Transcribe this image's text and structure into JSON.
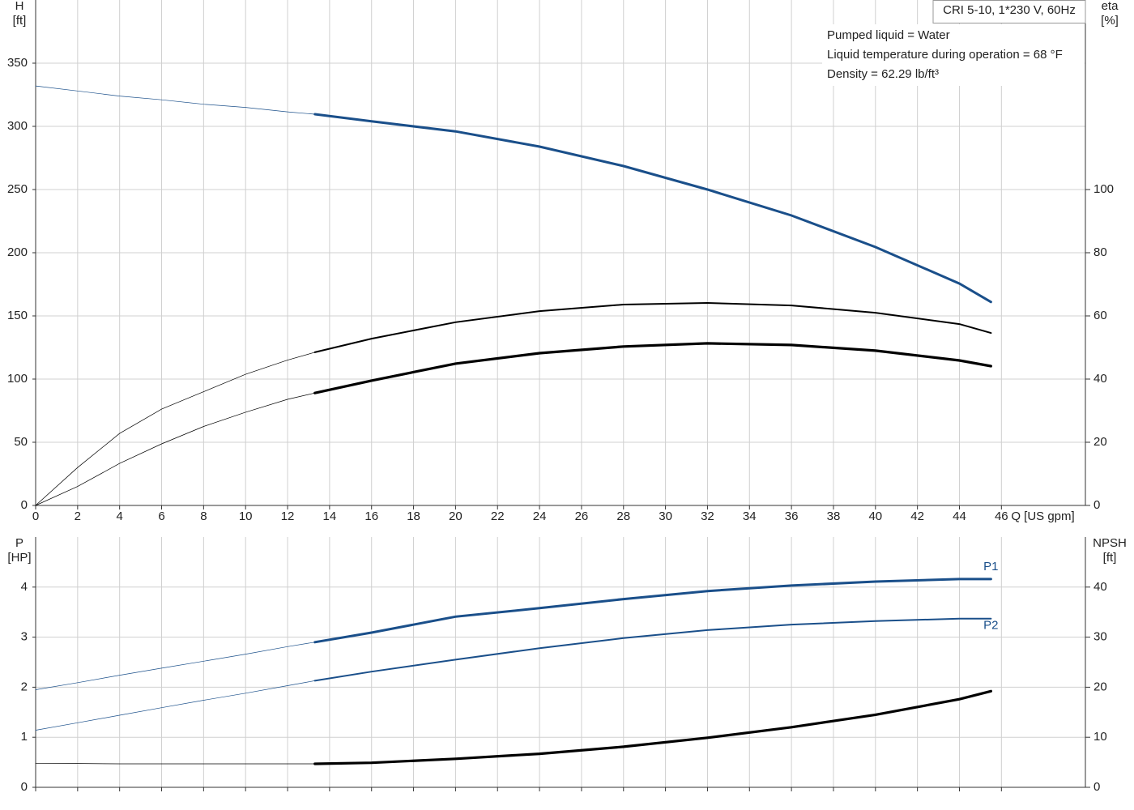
{
  "chart_data": [
    {
      "type": "line",
      "title": "CRI 5-10, 1*230 V, 60Hz",
      "annotations": [
        "Pumped liquid = Water",
        "Liquid temperature during operation = 68 °F",
        "Density = 62.29 lb/ft³"
      ],
      "ylabel": "H",
      "yunit": "[ft]",
      "y2label": "eta",
      "y2unit": "[%]",
      "xlabel": "Q [US gpm]",
      "xlim": [
        0,
        50
      ],
      "xticks": [
        0,
        2,
        4,
        6,
        8,
        10,
        12,
        14,
        16,
        18,
        20,
        22,
        24,
        26,
        28,
        30,
        32,
        34,
        36,
        38,
        40,
        42,
        44,
        46
      ],
      "ylim": [
        0,
        400
      ],
      "yticks": [
        0,
        50,
        100,
        150,
        200,
        250,
        300,
        350
      ],
      "y2lim": [
        0,
        160
      ],
      "y2ticks": [
        0,
        20,
        40,
        60,
        80,
        100
      ],
      "grid": true,
      "operating_range": [
        13.3,
        45.5
      ],
      "x": [
        0,
        2,
        4,
        6,
        8,
        10,
        12,
        13.3,
        16,
        20,
        24,
        28,
        32,
        36,
        40,
        44,
        45.5
      ],
      "series": [
        {
          "color": "#1a4f8a",
          "linewidth": 3,
          "values": [
            332,
            328,
            324,
            321,
            317.5,
            315,
            311.5,
            309.6,
            304,
            296,
            284,
            268.6,
            250,
            229.5,
            204.5,
            175.6,
            161
          ]
        },
        {
          "color": "#000000",
          "linewidth": 2,
          "axis": "y2",
          "values": [
            0,
            12,
            22.8,
            30.5,
            36,
            41.5,
            46,
            48.5,
            52.8,
            58,
            61.5,
            63.6,
            64.1,
            63.3,
            61,
            57.4,
            54.6
          ]
        },
        {
          "color": "#000000",
          "linewidth": 3.2,
          "axis": "y2",
          "values": [
            0,
            6,
            13.3,
            19.5,
            25,
            29.5,
            33.6,
            35.6,
            39.5,
            44.9,
            48.2,
            50.3,
            51.3,
            50.8,
            49,
            45.9,
            44.1
          ]
        }
      ]
    },
    {
      "type": "line",
      "ylabel": "P",
      "yunit": "[HP]",
      "y2label": "NPSH",
      "y2unit": "[ft]",
      "xlim": [
        0,
        50
      ],
      "ylim": [
        0,
        5
      ],
      "yticks": [
        0,
        1,
        2,
        3,
        4
      ],
      "y2lim": [
        0,
        50
      ],
      "y2ticks": [
        0,
        10,
        20,
        30,
        40
      ],
      "grid": true,
      "operating_range": [
        13.3,
        45.5
      ],
      "x": [
        0,
        2,
        4,
        6,
        8,
        10,
        12,
        13.3,
        16,
        20,
        24,
        28,
        32,
        36,
        40,
        44,
        45.5
      ],
      "series": [
        {
          "name": "P1",
          "color": "#1a4f8a",
          "linewidth": 3,
          "values": [
            1.95,
            2.09,
            2.24,
            2.38,
            2.52,
            2.66,
            2.81,
            2.9,
            3.09,
            3.41,
            3.58,
            3.76,
            3.92,
            4.03,
            4.11,
            4.16,
            4.16
          ]
        },
        {
          "name": "P2",
          "color": "#1a4f8a",
          "linewidth": 2,
          "values": [
            1.14,
            1.29,
            1.44,
            1.59,
            1.74,
            1.88,
            2.03,
            2.13,
            2.31,
            2.55,
            2.78,
            2.98,
            3.14,
            3.25,
            3.32,
            3.37,
            3.37
          ]
        },
        {
          "color": "#000000",
          "linewidth": 3.2,
          "axis": "y2",
          "values": [
            4.8,
            4.75,
            4.7,
            4.7,
            4.7,
            4.7,
            4.7,
            4.7,
            4.9,
            5.7,
            6.7,
            8.1,
            9.9,
            12,
            14.5,
            17.6,
            19.2
          ]
        }
      ]
    }
  ]
}
